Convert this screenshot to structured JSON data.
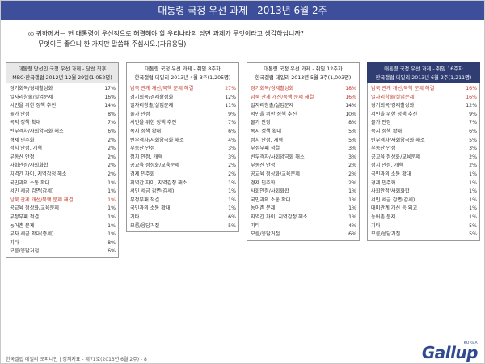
{
  "header": {
    "title": "대통령 국정 우선 과제 - 2013년 6월 2주"
  },
  "question": {
    "line1": "◎ 귀하께서는 현 대통령이 우선적으로 해결해야 할 우리나라의 당면 과제가 무엇이라고 생각하십니까?",
    "line2": "무엇이든 좋으니 한 가지만 말씀해 주십시오.(자유응답)"
  },
  "tables": [
    {
      "style": "grey",
      "title": "대통령 당선인 국정 우선 과제 - 당선 직후",
      "subtitle": "MBC·한국갤럽 2012년 12월 29일(1,052명)",
      "rows": [
        {
          "label": "경기회복/경제활성화",
          "value": "17%",
          "highlight": false
        },
        {
          "label": "일자리창출/실업문제",
          "value": "16%",
          "highlight": false
        },
        {
          "label": "서민을 위한 정책 추진",
          "value": "14%",
          "highlight": false
        },
        {
          "label": "물가 안정",
          "value": "8%",
          "highlight": false
        },
        {
          "label": "복지 정책 확대",
          "value": "7%",
          "highlight": false
        },
        {
          "label": "빈부격차/사회양극화 해소",
          "value": "6%",
          "highlight": false
        },
        {
          "label": "경제 민주화",
          "value": "2%",
          "highlight": false
        },
        {
          "label": "정치 안정, 개혁",
          "value": "2%",
          "highlight": false
        },
        {
          "label": "부동산 안정",
          "value": "2%",
          "highlight": false
        },
        {
          "label": "사회안정/사회화합",
          "value": "2%",
          "highlight": false
        },
        {
          "label": "지역간 차이, 지역감정 해소",
          "value": "2%",
          "highlight": false
        },
        {
          "label": "국민과의 소통 확대",
          "value": "1%",
          "highlight": false
        },
        {
          "label": "서민 세금 감면(감세)",
          "value": "1%",
          "highlight": false
        },
        {
          "label": "남북 관계 개선/북핵 문제 해결",
          "value": "1%",
          "highlight": true
        },
        {
          "label": "공교육 정상화/교육문제",
          "value": "1%",
          "highlight": false
        },
        {
          "label": "부정부패 척결",
          "value": "1%",
          "highlight": false
        },
        {
          "label": "농어촌 문제",
          "value": "1%",
          "highlight": false
        },
        {
          "label": "부자 세금 확대(증세)",
          "value": "1%",
          "highlight": false
        },
        {
          "label": "기타",
          "value": "8%",
          "highlight": false
        },
        {
          "label": "모름/응답거절",
          "value": "6%",
          "highlight": false
        }
      ]
    },
    {
      "style": "white",
      "title": "대통령 국정 우선 과제 - 취임 8주차",
      "subtitle": "한국갤럽 데일리 2013년 4월 3주(1,205명)",
      "rows": [
        {
          "label": "남북 관계 개선/북핵 문제 해결",
          "value": "27%",
          "highlight": true
        },
        {
          "label": "경기회복/경제활성화",
          "value": "12%",
          "highlight": false
        },
        {
          "label": "일자리창출/실업문제",
          "value": "11%",
          "highlight": false
        },
        {
          "label": "물가 안정",
          "value": "9%",
          "highlight": false
        },
        {
          "label": "서민을 위한 정책 추진",
          "value": "7%",
          "highlight": false
        },
        {
          "label": "복지 정책 확대",
          "value": "6%",
          "highlight": false
        },
        {
          "label": "빈부격차/사회양극화 해소",
          "value": "4%",
          "highlight": false
        },
        {
          "label": "부동산 안정",
          "value": "3%",
          "highlight": false
        },
        {
          "label": "정치 안정, 개혁",
          "value": "3%",
          "highlight": false
        },
        {
          "label": "공교육 정상화/교육문제",
          "value": "2%",
          "highlight": false
        },
        {
          "label": "경제 민주화",
          "value": "2%",
          "highlight": false
        },
        {
          "label": "지역간 차이, 지역감정 해소",
          "value": "1%",
          "highlight": false
        },
        {
          "label": "서민 세금 감면(감세)",
          "value": "1%",
          "highlight": false
        },
        {
          "label": "부정부패 척결",
          "value": "1%",
          "highlight": false
        },
        {
          "label": "국민과의 소통 확대",
          "value": "1%",
          "highlight": false
        },
        {
          "label": "기타",
          "value": "6%",
          "highlight": false
        },
        {
          "label": "모름/응답거절",
          "value": "5%",
          "highlight": false
        }
      ]
    },
    {
      "style": "white",
      "title": "대통령 국정 우선 과제 - 취임 12주차",
      "subtitle": "한국갤럽 데일리 2013년 5월 3주(1,003명)",
      "rows": [
        {
          "label": "경기회복/경제활성화",
          "value": "18%",
          "highlight": true
        },
        {
          "label": "남북 관계 개선/북핵 문제 해결",
          "value": "16%",
          "highlight": true
        },
        {
          "label": "일자리창출/실업문제",
          "value": "14%",
          "highlight": false
        },
        {
          "label": "서민을 위한 정책 추진",
          "value": "10%",
          "highlight": false
        },
        {
          "label": "물가 안정",
          "value": "8%",
          "highlight": false
        },
        {
          "label": "복지 정책 확대",
          "value": "5%",
          "highlight": false
        },
        {
          "label": "정치 안정, 개혁",
          "value": "5%",
          "highlight": false
        },
        {
          "label": "부정부패 척결",
          "value": "3%",
          "highlight": false
        },
        {
          "label": "빈부격차/사회양극화 해소",
          "value": "3%",
          "highlight": false
        },
        {
          "label": "부동산 안정",
          "value": "2%",
          "highlight": false
        },
        {
          "label": "공교육 정상화/교육문제",
          "value": "2%",
          "highlight": false
        },
        {
          "label": "경제 민주화",
          "value": "2%",
          "highlight": false
        },
        {
          "label": "사회안정/사회화합",
          "value": "1%",
          "highlight": false
        },
        {
          "label": "국민과의 소통 확대",
          "value": "1%",
          "highlight": false
        },
        {
          "label": "농어촌 문제",
          "value": "1%",
          "highlight": false
        },
        {
          "label": "지역간 차이, 지역감정 해소",
          "value": "1%",
          "highlight": false
        },
        {
          "label": "기타",
          "value": "4%",
          "highlight": false
        },
        {
          "label": "모름/응답거절",
          "value": "6%",
          "highlight": false
        }
      ]
    },
    {
      "style": "navy",
      "title": "대통령 국정 우선 과제 - 취임 16주차",
      "subtitle": "한국갤럽 데일리 2013년 6월 2주(1,211명)",
      "rows": [
        {
          "label": "남북 관계 개선/북핵 문제 해결",
          "value": "16%",
          "highlight": true
        },
        {
          "label": "일자리창출/실업문제",
          "value": "16%",
          "highlight": true
        },
        {
          "label": "경기회복/경제활성화",
          "value": "12%",
          "highlight": false
        },
        {
          "label": "서민을 위한 정책 추진",
          "value": "9%",
          "highlight": false
        },
        {
          "label": "물가 안정",
          "value": "7%",
          "highlight": false
        },
        {
          "label": "복지 정책 확대",
          "value": "6%",
          "highlight": false
        },
        {
          "label": "빈부격차/사회양극화 해소",
          "value": "5%",
          "highlight": false
        },
        {
          "label": "부동산 안정",
          "value": "3%",
          "highlight": false
        },
        {
          "label": "공교육 정상화/교육문제",
          "value": "2%",
          "highlight": false
        },
        {
          "label": "정치 안정, 개혁",
          "value": "2%",
          "highlight": false
        },
        {
          "label": "국민과의 소통 확대",
          "value": "1%",
          "highlight": false
        },
        {
          "label": "경제 민주화",
          "value": "1%",
          "highlight": false
        },
        {
          "label": "사회안정/사회화합",
          "value": "1%",
          "highlight": false
        },
        {
          "label": "서민 세금 감면(감세)",
          "value": "1%",
          "highlight": false
        },
        {
          "label": "대미관계 개선 등 외교",
          "value": "1%",
          "highlight": false
        },
        {
          "label": "농어촌 문제",
          "value": "1%",
          "highlight": false
        },
        {
          "label": "기타",
          "value": "5%",
          "highlight": false
        },
        {
          "label": "모름/응답거절",
          "value": "5%",
          "highlight": false
        }
      ]
    }
  ],
  "footer": {
    "text": "한국갤럽 데일리 오피니언 | 정치지표 - 제71호(2013년 6월 2주) - 8"
  },
  "logo": {
    "main": "Gallup",
    "sub": "KOREA"
  },
  "colors": {
    "title_bar": "#3d4f9a",
    "navy_header": "#2f3d73",
    "highlight_text": "#c0392b",
    "logo": "#2f4a8f"
  }
}
